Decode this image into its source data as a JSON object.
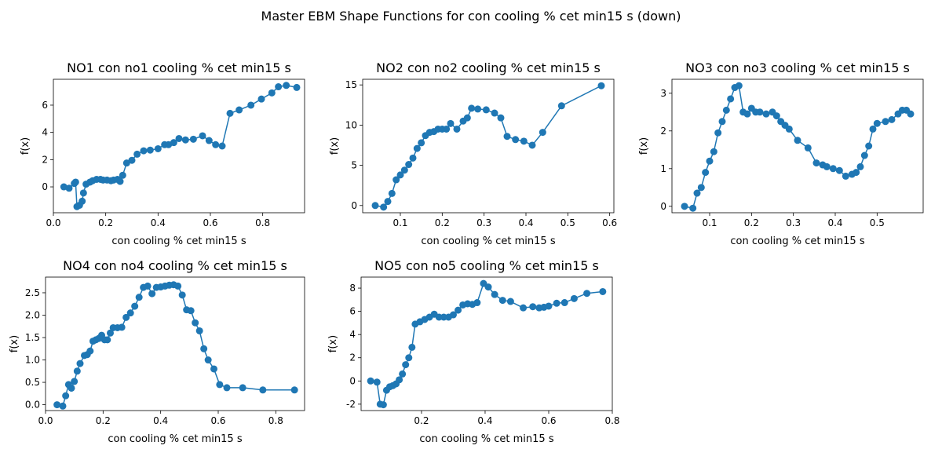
{
  "figure": {
    "suptitle": "Master EBM Shape Functions for con  cooling % cet min15 s (down)"
  },
  "style": {
    "line_color": "#1f77b4",
    "marker_color": "#1f77b4",
    "axis_color": "#000000"
  },
  "chart_data": [
    {
      "type": "line",
      "title": "NO1 con no1 cooling % cet min15 s",
      "xlabel": "con  cooling % cet min15 s",
      "ylabel": "f(x)",
      "xlim": [
        0.0,
        0.96
      ],
      "ylim": [
        -1.9,
        7.9
      ],
      "xticks": [
        0.0,
        0.2,
        0.4,
        0.6,
        0.8
      ],
      "yticks": [
        0,
        2,
        4,
        6
      ],
      "x": [
        0.04,
        0.06,
        0.08,
        0.085,
        0.09,
        0.1,
        0.11,
        0.115,
        0.125,
        0.14,
        0.15,
        0.165,
        0.18,
        0.19,
        0.205,
        0.22,
        0.23,
        0.245,
        0.255,
        0.265,
        0.28,
        0.3,
        0.32,
        0.345,
        0.37,
        0.4,
        0.425,
        0.44,
        0.46,
        0.48,
        0.505,
        0.535,
        0.57,
        0.595,
        0.62,
        0.645,
        0.675,
        0.71,
        0.755,
        0.795,
        0.835,
        0.86,
        0.89,
        0.93
      ],
      "y": [
        0.0,
        -0.1,
        0.25,
        0.35,
        -1.45,
        -1.35,
        -1.05,
        -0.45,
        0.2,
        0.35,
        0.45,
        0.55,
        0.55,
        0.5,
        0.5,
        0.45,
        0.5,
        0.55,
        0.4,
        0.85,
        1.75,
        1.95,
        2.4,
        2.65,
        2.7,
        2.8,
        3.1,
        3.1,
        3.25,
        3.55,
        3.45,
        3.5,
        3.75,
        3.4,
        3.1,
        3.0,
        5.4,
        5.65,
        6.0,
        6.45,
        6.9,
        7.35,
        7.45,
        7.3
      ]
    },
    {
      "type": "line",
      "title": "NO2 con no2 cooling % cet min15 s",
      "xlabel": "con  cooling % cet min15 s",
      "ylabel": "f(x)",
      "xlim": [
        0.01,
        0.61
      ],
      "ylim": [
        -0.9,
        15.7
      ],
      "xticks": [
        0.1,
        0.2,
        0.3,
        0.4,
        0.5,
        0.6
      ],
      "yticks": [
        0,
        5,
        10,
        15
      ],
      "x": [
        0.04,
        0.06,
        0.07,
        0.08,
        0.09,
        0.1,
        0.11,
        0.12,
        0.13,
        0.14,
        0.15,
        0.16,
        0.17,
        0.18,
        0.19,
        0.2,
        0.21,
        0.22,
        0.235,
        0.25,
        0.26,
        0.27,
        0.285,
        0.305,
        0.325,
        0.34,
        0.355,
        0.375,
        0.395,
        0.415,
        0.44,
        0.485,
        0.58
      ],
      "y": [
        0.0,
        -0.2,
        0.5,
        1.5,
        3.2,
        3.8,
        4.4,
        5.1,
        5.9,
        7.1,
        7.8,
        8.7,
        9.1,
        9.2,
        9.5,
        9.5,
        9.5,
        10.2,
        9.5,
        10.5,
        10.9,
        12.1,
        12.0,
        11.9,
        11.5,
        10.9,
        8.6,
        8.2,
        8.0,
        7.5,
        9.1,
        12.4,
        14.9
      ]
    },
    {
      "type": "line",
      "title": "NO3 con no3 cooling % cet min15 s",
      "xlabel": "con  cooling % cet min15 s",
      "ylabel": "f(x)",
      "xlim": [
        0.01,
        0.61
      ],
      "ylim": [
        -0.17,
        3.37
      ],
      "xticks": [
        0.1,
        0.2,
        0.3,
        0.4,
        0.5
      ],
      "yticks": [
        0,
        1,
        2,
        3
      ],
      "x": [
        0.04,
        0.06,
        0.07,
        0.08,
        0.09,
        0.1,
        0.11,
        0.12,
        0.13,
        0.14,
        0.15,
        0.16,
        0.17,
        0.18,
        0.19,
        0.2,
        0.21,
        0.22,
        0.235,
        0.25,
        0.26,
        0.27,
        0.28,
        0.29,
        0.31,
        0.335,
        0.355,
        0.37,
        0.38,
        0.395,
        0.41,
        0.425,
        0.44,
        0.45,
        0.46,
        0.47,
        0.48,
        0.49,
        0.5,
        0.52,
        0.535,
        0.55,
        0.56,
        0.57,
        0.58
      ],
      "y": [
        0.0,
        -0.05,
        0.35,
        0.5,
        0.9,
        1.2,
        1.45,
        1.95,
        2.25,
        2.55,
        2.85,
        3.15,
        3.2,
        2.5,
        2.45,
        2.6,
        2.5,
        2.5,
        2.45,
        2.5,
        2.4,
        2.25,
        2.15,
        2.05,
        1.75,
        1.55,
        1.15,
        1.1,
        1.05,
        1.0,
        0.95,
        0.8,
        0.85,
        0.9,
        1.05,
        1.35,
        1.6,
        2.05,
        2.2,
        2.25,
        2.3,
        2.45,
        2.55,
        2.55,
        2.45
      ]
    },
    {
      "type": "line",
      "title": "NO4 con no4 cooling % cet min15 s",
      "xlabel": "con  cooling % cet min15 s",
      "ylabel": "f(x)",
      "xlim": [
        0.0,
        0.9
      ],
      "ylim": [
        -0.13,
        2.85
      ],
      "xticks": [
        0.0,
        0.2,
        0.4,
        0.6,
        0.8
      ],
      "yticks": [
        0.0,
        0.5,
        1.0,
        1.5,
        2.0,
        2.5
      ],
      "x": [
        0.04,
        0.06,
        0.07,
        0.08,
        0.09,
        0.1,
        0.11,
        0.12,
        0.135,
        0.145,
        0.155,
        0.165,
        0.175,
        0.185,
        0.195,
        0.205,
        0.215,
        0.225,
        0.235,
        0.25,
        0.265,
        0.28,
        0.295,
        0.31,
        0.325,
        0.34,
        0.355,
        0.37,
        0.385,
        0.4,
        0.415,
        0.43,
        0.445,
        0.46,
        0.475,
        0.49,
        0.505,
        0.52,
        0.535,
        0.55,
        0.565,
        0.585,
        0.605,
        0.63,
        0.685,
        0.755,
        0.865
      ],
      "y": [
        0.0,
        -0.03,
        0.2,
        0.45,
        0.37,
        0.52,
        0.75,
        0.92,
        1.1,
        1.12,
        1.2,
        1.42,
        1.45,
        1.48,
        1.55,
        1.45,
        1.45,
        1.6,
        1.72,
        1.72,
        1.73,
        1.95,
        2.05,
        2.2,
        2.4,
        2.62,
        2.65,
        2.48,
        2.62,
        2.63,
        2.65,
        2.67,
        2.68,
        2.65,
        2.45,
        2.12,
        2.1,
        1.83,
        1.65,
        1.25,
        1.0,
        0.8,
        0.45,
        0.38,
        0.38,
        0.33,
        0.33
      ]
    },
    {
      "type": "line",
      "title": "NO5 con no5 cooling % cet min15 s",
      "xlabel": "con  cooling % cet min15 s",
      "ylabel": "f(x)",
      "xlim": [
        0.01,
        0.8
      ],
      "ylim": [
        -2.55,
        8.95
      ],
      "xticks": [
        0.2,
        0.4,
        0.6,
        0.8
      ],
      "yticks": [
        -2,
        0,
        2,
        4,
        6,
        8
      ],
      "x": [
        0.04,
        0.06,
        0.07,
        0.08,
        0.09,
        0.1,
        0.11,
        0.12,
        0.13,
        0.14,
        0.15,
        0.16,
        0.17,
        0.18,
        0.195,
        0.21,
        0.225,
        0.24,
        0.255,
        0.27,
        0.285,
        0.3,
        0.315,
        0.33,
        0.345,
        0.36,
        0.375,
        0.395,
        0.41,
        0.43,
        0.455,
        0.48,
        0.52,
        0.55,
        0.57,
        0.585,
        0.6,
        0.625,
        0.65,
        0.68,
        0.72,
        0.77
      ],
      "y": [
        0.0,
        -0.1,
        -2.0,
        -2.05,
        -0.8,
        -0.5,
        -0.4,
        -0.25,
        0.1,
        0.6,
        1.4,
        2.0,
        2.9,
        4.9,
        5.1,
        5.3,
        5.5,
        5.75,
        5.5,
        5.5,
        5.5,
        5.7,
        6.1,
        6.55,
        6.65,
        6.6,
        6.75,
        8.4,
        8.1,
        7.45,
        6.95,
        6.85,
        6.3,
        6.4,
        6.3,
        6.35,
        6.45,
        6.7,
        6.75,
        7.1,
        7.55,
        7.7
      ]
    }
  ]
}
